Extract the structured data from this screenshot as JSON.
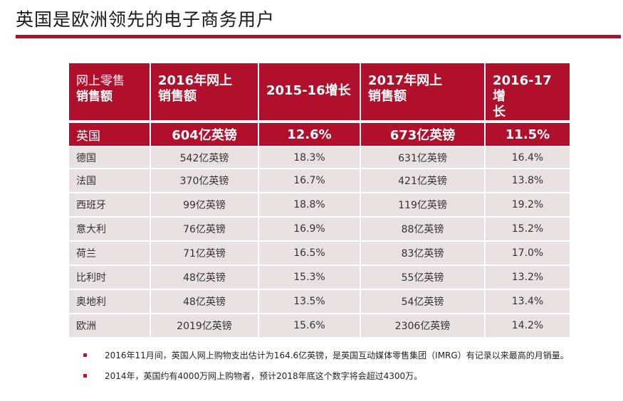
{
  "page": {
    "title": "英国是欧洲领先的电子商务用户",
    "accent_color": "#b0102c"
  },
  "table": {
    "headers": [
      {
        "line1": "网上零售",
        "line2": "销售额"
      },
      {
        "line1": "2016年网上",
        "line2": "销售额"
      },
      {
        "line1": "2015-16增长",
        "line2": ""
      },
      {
        "line1": "2017年网上",
        "line2": "销售额"
      },
      {
        "line1": "2016-17增",
        "line2": "长"
      }
    ],
    "highlight_row": [
      "英国",
      "604亿英镑",
      "12.6%",
      "673亿英镑",
      "11.5%"
    ],
    "rows": [
      [
        "德国",
        "542亿英镑",
        "18.3%",
        "631亿英镑",
        "16.4%"
      ],
      [
        "法国",
        "370亿英镑",
        "16.7%",
        "421亿英镑",
        "13.8%"
      ],
      [
        "西班牙",
        "99亿英镑",
        "18.8%",
        "119亿英镑",
        "19.2%"
      ],
      [
        "意大利",
        "76亿英镑",
        "16.9%",
        "88亿英镑",
        "15.2%"
      ],
      [
        "荷兰",
        "71亿英镑",
        "16.5%",
        "83亿英镑",
        "17.0%"
      ],
      [
        "比利时",
        "48亿英镑",
        "15.3%",
        "55亿英镑",
        "13.2%"
      ],
      [
        "奥地利",
        "48亿英镑",
        "13.5%",
        "54亿英镑",
        "13.4%"
      ],
      [
        "欧洲",
        "2019亿英镑",
        "15.6%",
        "2306亿英镑",
        "14.2%"
      ]
    ]
  },
  "notes": [
    "2016年11月间，英国人网上购物支出估计为164.6亿英镑，是英国互动媒体零售集团（IMRG）有记录以来最高的月销量。",
    "2014年，英国约有4000万网上购物者，预计2018年底这个数字将会超过4300万。"
  ]
}
